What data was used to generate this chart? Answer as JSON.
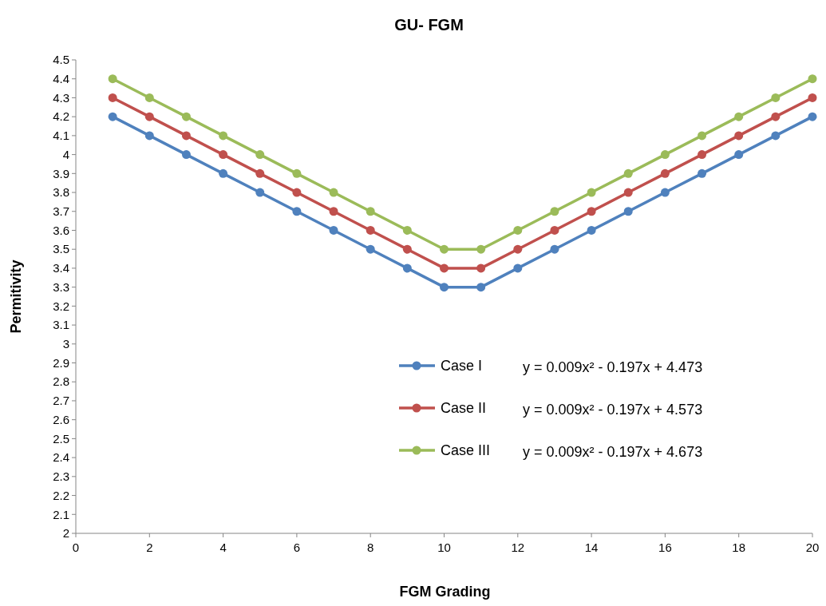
{
  "chart_data": {
    "type": "line",
    "title": "GU- FGM",
    "xlabel": "FGM Grading",
    "ylabel": "Permitivity",
    "x": [
      1,
      2,
      3,
      4,
      5,
      6,
      7,
      8,
      9,
      10,
      11,
      12,
      13,
      14,
      15,
      16,
      17,
      18,
      19,
      20
    ],
    "series": [
      {
        "name": "Case I",
        "color": "#4f81bd",
        "values": [
          4.2,
          4.1,
          4.0,
          3.9,
          3.8,
          3.7,
          3.6,
          3.5,
          3.4,
          3.3,
          3.3,
          3.4,
          3.5,
          3.6,
          3.7,
          3.8,
          3.9,
          4.0,
          4.1,
          4.2
        ]
      },
      {
        "name": "Case II",
        "color": "#c0504d",
        "values": [
          4.3,
          4.2,
          4.1,
          4.0,
          3.9,
          3.8,
          3.7,
          3.6,
          3.5,
          3.4,
          3.4,
          3.5,
          3.6,
          3.7,
          3.8,
          3.9,
          4.0,
          4.1,
          4.2,
          4.3
        ]
      },
      {
        "name": "Case III",
        "color": "#9bbb59",
        "values": [
          4.4,
          4.3,
          4.2,
          4.1,
          4.0,
          3.9,
          3.8,
          3.7,
          3.6,
          3.5,
          3.5,
          3.6,
          3.7,
          3.8,
          3.9,
          4.0,
          4.1,
          4.2,
          4.3,
          4.4
        ]
      }
    ],
    "annotations": [
      "y = 0.009x² - 0.197x + 4.473",
      "y = 0.009x² - 0.197x + 4.573",
      "y = 0.009x² - 0.197x + 4.673"
    ],
    "xlim": [
      0,
      20
    ],
    "xticks": [
      0,
      2,
      4,
      6,
      8,
      10,
      12,
      14,
      16,
      18,
      20
    ],
    "ylim": [
      2,
      4.5
    ],
    "yticks": [
      2,
      2.1,
      2.2,
      2.3,
      2.4,
      2.5,
      2.6,
      2.7,
      2.8,
      2.9,
      3,
      3.1,
      3.2,
      3.3,
      3.4,
      3.5,
      3.6,
      3.7,
      3.8,
      3.9,
      4,
      4.1,
      4.2,
      4.3,
      4.4,
      4.5
    ],
    "grid": false,
    "legend": "right",
    "marker": "circle",
    "line_style": "solid"
  }
}
